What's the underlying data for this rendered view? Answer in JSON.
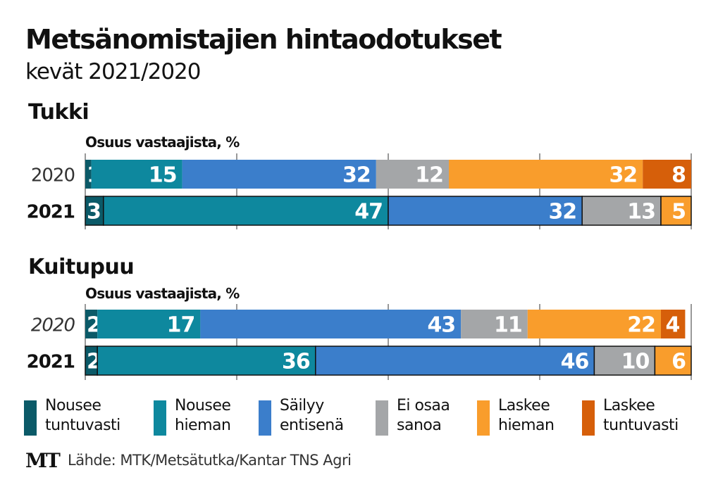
{
  "header": {
    "title": "Metsänomistajien hintaodotukset",
    "subtitle": "kevät 2021/2020"
  },
  "chart_data": {
    "type": "bar",
    "orientation": "horizontal-stacked",
    "title": "Metsänomistajien hintaodotukset",
    "subtitle": "kevät 2021/2020",
    "xlabel": "Osuus vastaajista, %",
    "xlim": [
      0,
      100
    ],
    "ticks": [
      0,
      25,
      50,
      75,
      100
    ],
    "categories_legend": [
      {
        "name": "Nousee tuntuvasti",
        "line1": "Nousee",
        "line2": "tuntuvasti",
        "color": "#0b5a68"
      },
      {
        "name": "Nousee hieman",
        "line1": "Nousee",
        "line2": "hieman",
        "color": "#0e889e"
      },
      {
        "name": "Säilyy entisenä",
        "line1": "Säilyy",
        "line2": "entisenä",
        "color": "#3b7ecb"
      },
      {
        "name": "Ei osaa sanoa",
        "line1": "Ei osaa",
        "line2": "sanoa",
        "color": "#a4a6a8"
      },
      {
        "name": "Laskee hieman",
        "line1": "Laskee",
        "line2": "hieman",
        "color": "#f99d2c"
      },
      {
        "name": "Laskee tuntuvasti",
        "line1": "Laskee",
        "line2": "tuntuvasti",
        "color": "#d65f0a"
      }
    ],
    "panels": [
      {
        "title": "Tukki",
        "axis_label": "Osuus vastaajista, %",
        "rows": [
          {
            "label": "2020",
            "style": "light",
            "values": [
              1,
              15,
              32,
              12,
              32,
              8
            ]
          },
          {
            "label": "2021",
            "style": "bold",
            "values": [
              3,
              47,
              32,
              13,
              5,
              0
            ]
          }
        ]
      },
      {
        "title": "Kuitupuu",
        "axis_label": "Osuus vastaajista, %",
        "rows": [
          {
            "label": "2020",
            "style": "italic",
            "values": [
              2,
              17,
              43,
              11,
              22,
              4
            ]
          },
          {
            "label": "2021",
            "style": "bold",
            "values": [
              2,
              36,
              46,
              10,
              6,
              0
            ]
          }
        ]
      }
    ]
  },
  "source": {
    "logo": "MT",
    "text": "Lähde: MTK/Metsätutka/Kantar TNS Agri"
  }
}
